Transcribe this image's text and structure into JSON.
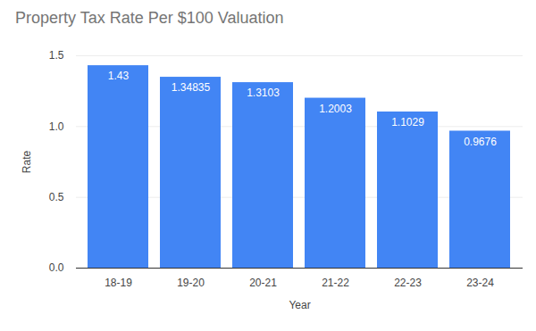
{
  "chart_data": {
    "type": "bar",
    "title": "Property Tax Rate Per $100 Valuation",
    "x_label": "Year",
    "y_label": "Rate",
    "categories": [
      "18-19",
      "19-20",
      "20-21",
      "21-22",
      "22-23",
      "23-24"
    ],
    "values": [
      1.43,
      1.34835,
      1.3103,
      1.2003,
      1.1029,
      0.9676
    ],
    "color": "#4285f4",
    "ylim": [
      0,
      1.5
    ],
    "yticks": [
      {
        "value": 0,
        "label": "0.0"
      },
      {
        "value": 0.5,
        "label": "0.5"
      },
      {
        "value": 1,
        "label": "1.0"
      },
      {
        "value": 1.5,
        "label": "1.5"
      }
    ],
    "grid": true,
    "data_labels": true
  }
}
